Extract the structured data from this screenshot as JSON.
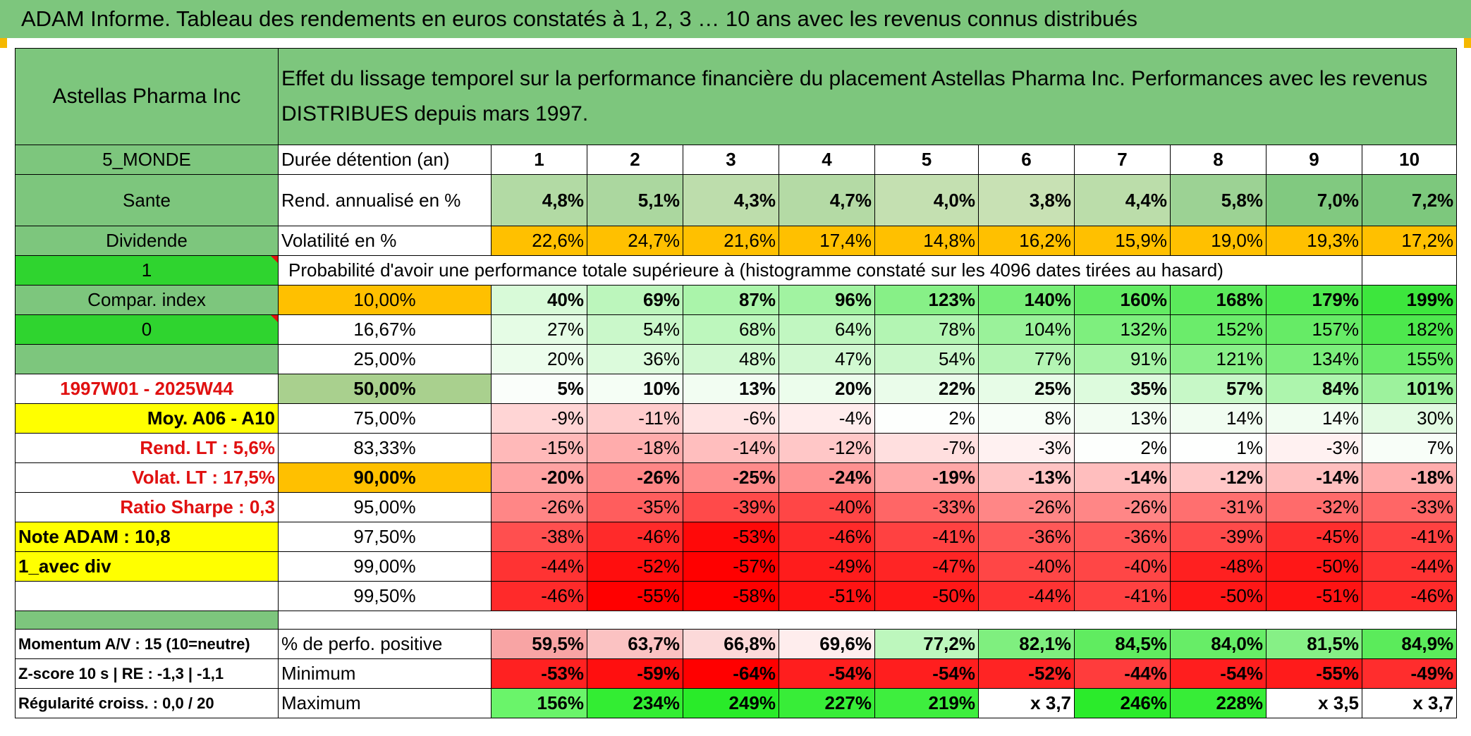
{
  "title": "ADAM Informe. Tableau des rendements en euros constatés à 1, 2, 3 … 10 ans avec les revenus connus distribués",
  "header": {
    "fund_name": "Astellas Pharma Inc",
    "description": "Effet du lissage temporel sur la performance financière du placement Astellas Pharma Inc. Performances avec les revenus DISTRIBUES depuis mars 1997."
  },
  "side": {
    "zone": "5_MONDE",
    "sector": "Sante",
    "type": "Dividende",
    "flag1": "1",
    "compar": "Compar. index",
    "flag0": "0",
    "period": "1997W01 - 2025W44",
    "moy": "Moy. A06 - A10",
    "rend_lt": "Rend. LT :   5,6%",
    "volat_lt": "Volat. LT :   17,5%",
    "sharpe": "Ratio Sharpe :    0,3",
    "note": "Note ADAM : 10,8",
    "avec_div": "1_avec div",
    "momentum": "Momentum A/V : 15 (10=neutre)",
    "zscore": "Z-score 10 s | RE : -1,3 | -1,1",
    "regularite": "Régularité croiss. : 0,0 / 20"
  },
  "labels": {
    "duree": "Durée détention (an)",
    "rend": "Rend. annualisé en %",
    "volat": "Volatilité en %",
    "proba": "Probabilité d'avoir une performance totale supérieure à (histogramme constaté sur les 4096 dates tirées au hasard)",
    "perf_pos": "% de perfo. positive",
    "minimum": "Minimum",
    "maximum": "Maximum"
  },
  "years": [
    "1",
    "2",
    "3",
    "4",
    "5",
    "6",
    "7",
    "8",
    "9",
    "10"
  ],
  "rend": [
    "4,8%",
    "5,1%",
    "4,3%",
    "4,7%",
    "4,0%",
    "3,8%",
    "4,4%",
    "5,8%",
    "7,0%",
    "7,2%"
  ],
  "volat": [
    "22,6%",
    "24,7%",
    "21,6%",
    "17,4%",
    "14,8%",
    "16,2%",
    "15,9%",
    "19,0%",
    "19,3%",
    "17,2%"
  ],
  "prob_rows": [
    {
      "p": "10,00%",
      "v": [
        "40%",
        "69%",
        "87%",
        "96%",
        "123%",
        "140%",
        "160%",
        "168%",
        "179%",
        "199%"
      ]
    },
    {
      "p": "16,67%",
      "v": [
        "27%",
        "54%",
        "68%",
        "64%",
        "78%",
        "104%",
        "132%",
        "152%",
        "157%",
        "182%"
      ]
    },
    {
      "p": "25,00%",
      "v": [
        "20%",
        "36%",
        "48%",
        "47%",
        "54%",
        "77%",
        "91%",
        "121%",
        "134%",
        "155%"
      ]
    },
    {
      "p": "50,00%",
      "v": [
        "5%",
        "10%",
        "13%",
        "20%",
        "22%",
        "25%",
        "35%",
        "57%",
        "84%",
        "101%"
      ]
    },
    {
      "p": "75,00%",
      "v": [
        "-9%",
        "-11%",
        "-6%",
        "-4%",
        "2%",
        "8%",
        "13%",
        "14%",
        "14%",
        "30%"
      ]
    },
    {
      "p": "83,33%",
      "v": [
        "-15%",
        "-18%",
        "-14%",
        "-12%",
        "-7%",
        "-3%",
        "2%",
        "1%",
        "-3%",
        "7%"
      ]
    },
    {
      "p": "90,00%",
      "v": [
        "-20%",
        "-26%",
        "-25%",
        "-24%",
        "-19%",
        "-13%",
        "-14%",
        "-12%",
        "-14%",
        "-18%"
      ]
    },
    {
      "p": "95,00%",
      "v": [
        "-26%",
        "-35%",
        "-39%",
        "-40%",
        "-33%",
        "-26%",
        "-26%",
        "-31%",
        "-32%",
        "-33%"
      ]
    },
    {
      "p": "97,50%",
      "v": [
        "-38%",
        "-46%",
        "-53%",
        "-46%",
        "-41%",
        "-36%",
        "-36%",
        "-39%",
        "-45%",
        "-41%"
      ]
    },
    {
      "p": "99,00%",
      "v": [
        "-44%",
        "-52%",
        "-57%",
        "-49%",
        "-47%",
        "-40%",
        "-40%",
        "-48%",
        "-50%",
        "-44%"
      ]
    },
    {
      "p": "99,50%",
      "v": [
        "-46%",
        "-55%",
        "-58%",
        "-51%",
        "-50%",
        "-44%",
        "-41%",
        "-50%",
        "-51%",
        "-46%"
      ]
    }
  ],
  "perf_pos": [
    "59,5%",
    "63,7%",
    "66,8%",
    "69,6%",
    "77,2%",
    "82,1%",
    "84,5%",
    "84,0%",
    "81,5%",
    "84,9%"
  ],
  "minimum": [
    "-53%",
    "-59%",
    "-64%",
    "-54%",
    "-54%",
    "-52%",
    "-44%",
    "-54%",
    "-55%",
    "-49%"
  ],
  "maximum": [
    "156%",
    "234%",
    "249%",
    "227%",
    "219%",
    "x 3,7",
    "246%",
    "228%",
    "x 3,5",
    "x 3,7"
  ],
  "colors": {
    "header_green": "#7dc67d",
    "bright_green": "#2fd42f",
    "yellow": "#ffff00",
    "orange": "#ffc000",
    "red_text": "#e01010"
  }
}
